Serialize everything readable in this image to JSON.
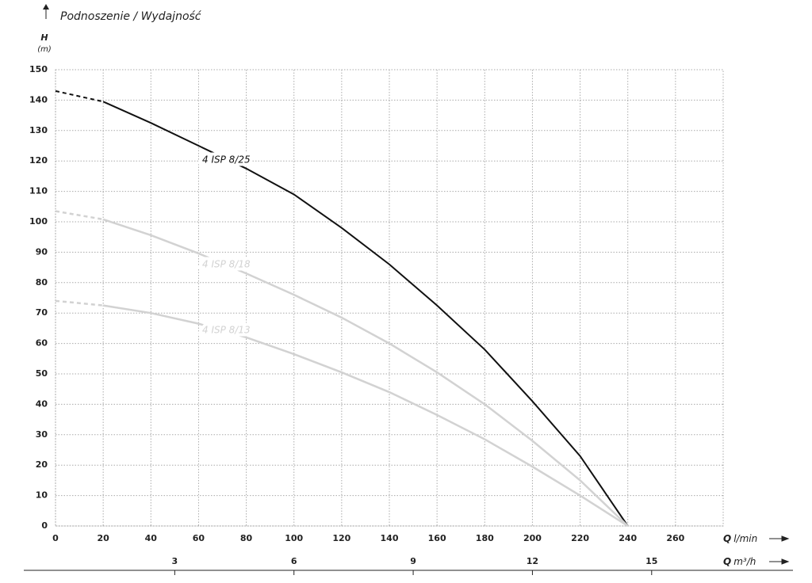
{
  "chart_data": {
    "type": "line",
    "title": "Podnoszenie / Wydajność",
    "y_label": {
      "symbol": "H",
      "unit": "(m)"
    },
    "x_label": {
      "symbol": "Q",
      "unit": "l/min"
    },
    "x2_label": {
      "symbol": "Q",
      "unit": "m³/h"
    },
    "x": [
      0,
      20,
      40,
      60,
      80,
      100,
      120,
      140,
      160,
      180,
      200,
      220,
      240
    ],
    "series": [
      {
        "name": "4 ISP 8/25",
        "color": "#111111",
        "values": [
          143,
          139.5,
          132.5,
          125,
          117.5,
          109,
          98,
          86,
          72.5,
          58,
          41,
          23,
          0
        ]
      },
      {
        "name": "4 ISP 8/18",
        "color": "#d2d2d2",
        "values": [
          103.5,
          100.8,
          95.6,
          89.6,
          83,
          76,
          68.5,
          60,
          50.5,
          40,
          28,
          15,
          0
        ]
      },
      {
        "name": "4 ISP 8/13",
        "color": "#d2d2d2",
        "values": [
          74,
          72.5,
          70,
          66.5,
          62,
          56.5,
          50.5,
          44,
          36.5,
          28.5,
          19.5,
          10,
          0
        ]
      }
    ],
    "xlim": [
      0,
      280
    ],
    "xticks": [
      0,
      20,
      40,
      60,
      80,
      100,
      120,
      140,
      160,
      180,
      200,
      220,
      240,
      260
    ],
    "ylim": [
      0,
      150
    ],
    "yticks": [
      0,
      10,
      20,
      30,
      40,
      50,
      60,
      70,
      80,
      90,
      100,
      110,
      120,
      130,
      140,
      150
    ],
    "x2lim": [
      0,
      16.8
    ],
    "x2ticks": [
      3,
      6,
      9,
      12,
      15
    ],
    "grid": true
  }
}
